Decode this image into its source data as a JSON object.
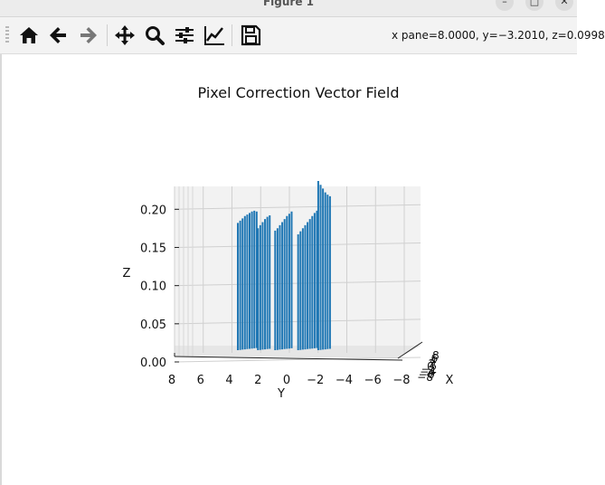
{
  "window": {
    "title": "Figure 1",
    "minimize": "–",
    "maximize": "□",
    "close": "✕"
  },
  "toolbar": {
    "buttons": [
      {
        "name": "home-icon"
      },
      {
        "name": "back-arrow-icon"
      },
      {
        "name": "forward-arrow-icon"
      },
      {
        "name": "pan-icon"
      },
      {
        "name": "zoom-icon"
      },
      {
        "name": "configure-subplots-icon"
      },
      {
        "name": "edit-axes-icon"
      },
      {
        "name": "save-icon"
      }
    ],
    "coords": "x pane=8.0000, y=−3.2010, z=0.0998"
  },
  "colors": {
    "bars": "#1f77b4"
  },
  "chart_data": {
    "type": "bar",
    "title": "Pixel Correction Vector Field",
    "xlabel": "X",
    "ylabel": "Y",
    "zlabel": "Z",
    "y_ticks": [
      "8",
      "6",
      "4",
      "2",
      "0",
      "−2",
      "−4",
      "−6",
      "−8"
    ],
    "z_ticks": [
      "0.00",
      "0.05",
      "0.10",
      "0.15",
      "0.20"
    ],
    "x_ticks": [
      "−8",
      "−6",
      "−4",
      "−2",
      "0",
      "2",
      "4",
      "6",
      "8"
    ],
    "zlim": [
      0,
      0.23
    ],
    "ylim": [
      8,
      -8
    ],
    "series": [
      {
        "y": 1.7,
        "values": [
          0.175,
          0.178,
          0.181,
          0.184,
          0.186,
          0.188,
          0.19,
          0.191,
          0.19
        ]
      },
      {
        "y": 0.3,
        "values": [
          0.168,
          0.172,
          0.176,
          0.18,
          0.183,
          0.185
        ]
      },
      {
        "y": -0.9,
        "values": [
          0.165,
          0.168,
          0.172,
          0.176,
          0.18,
          0.184,
          0.187,
          0.19
        ]
      },
      {
        "y": -2.5,
        "values": [
          0.16,
          0.164,
          0.168,
          0.172,
          0.176,
          0.18,
          0.184,
          0.188,
          0.191
        ]
      },
      {
        "y": -3.9,
        "values": [
          0.23,
          0.225,
          0.22,
          0.215,
          0.212,
          0.21
        ]
      }
    ]
  }
}
